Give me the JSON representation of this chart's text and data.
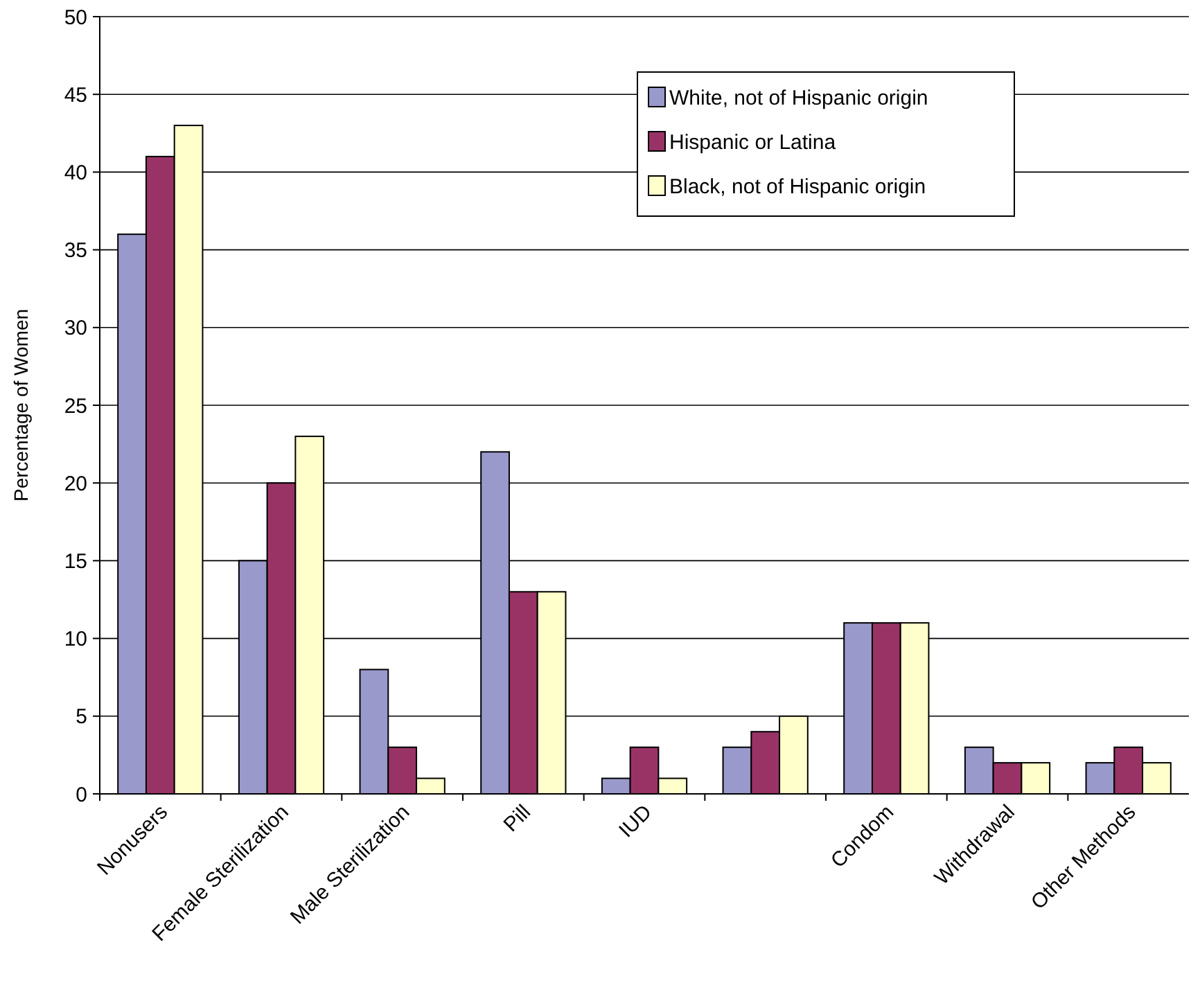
{
  "chart_data": {
    "type": "bar",
    "ylabel": "Percentage of Women",
    "categories": [
      "Nonusers",
      "Female Sterilization",
      "Male Sterilization",
      "Pill",
      "IUD",
      null,
      "Condom",
      "Withdrawal",
      "Other Methods"
    ],
    "series": [
      {
        "name": "White, not of Hispanic origin",
        "color": "#9999cc",
        "values": [
          36,
          15,
          8,
          22,
          1,
          3,
          11,
          3,
          2
        ]
      },
      {
        "name": "Hispanic or Latina",
        "color": "#993366",
        "values": [
          41,
          20,
          3,
          13,
          3,
          4,
          11,
          2,
          3
        ]
      },
      {
        "name": "Black, not of Hispanic origin",
        "color": "#ffffcc",
        "values": [
          43,
          23,
          1,
          13,
          1,
          5,
          11,
          2,
          2
        ]
      }
    ],
    "ylim": [
      0,
      50
    ],
    "yticks": [
      0,
      5,
      10,
      15,
      20,
      25,
      30,
      35,
      40,
      45,
      50
    ],
    "grid": "y",
    "legend": "top"
  }
}
